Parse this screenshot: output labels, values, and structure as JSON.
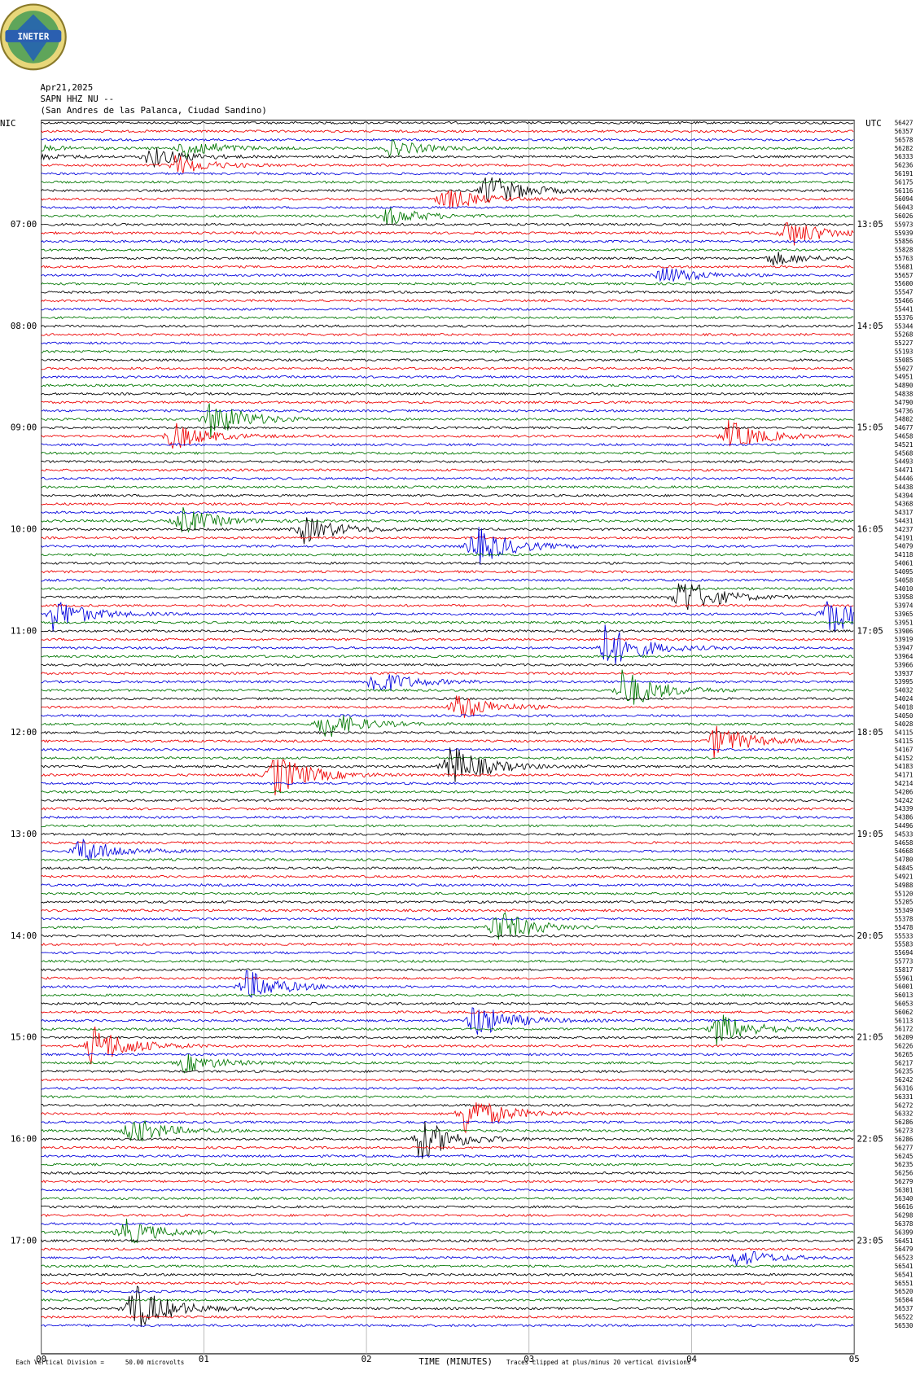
{
  "header": {
    "logo": "INETER",
    "date": "Apr21,2025",
    "station": "SAPN HHZ NU --",
    "location": "(San Andres de las Palanca, Ciudad Sandino)",
    "left_zone": "NIC",
    "right_zone": "UTC"
  },
  "hour_labels": [
    {
      "nic": "07:00",
      "utc": "13:05"
    },
    {
      "nic": "08:00",
      "utc": "14:05"
    },
    {
      "nic": "09:00",
      "utc": "15:05"
    },
    {
      "nic": "10:00",
      "utc": "16:05"
    },
    {
      "nic": "11:00",
      "utc": "17:05"
    },
    {
      "nic": "12:00",
      "utc": "18:05"
    },
    {
      "nic": "13:00",
      "utc": "19:05"
    },
    {
      "nic": "14:00",
      "utc": "20:05"
    },
    {
      "nic": "15:00",
      "utc": "21:05"
    },
    {
      "nic": "16:00",
      "utc": "22:05"
    },
    {
      "nic": "17:00",
      "utc": "23:05"
    }
  ],
  "trace_counts": [
    56427,
    56357,
    56578,
    56282,
    56333,
    56236,
    56191,
    56175,
    56116,
    56094,
    56043,
    56026,
    55973,
    55939,
    55856,
    55828,
    55763,
    55681,
    55657,
    55600,
    55547,
    55466,
    55441,
    55376,
    55344,
    55268,
    55227,
    55193,
    55085,
    55027,
    54951,
    54890,
    54838,
    54790,
    54736,
    54802,
    54677,
    54658,
    54521,
    54568,
    54493,
    54471,
    54446,
    54438,
    54394,
    54368,
    54317,
    54431,
    54237,
    54191,
    54079,
    54118,
    54061,
    54095,
    54058,
    54010,
    53958,
    53974,
    53965,
    53951,
    53906,
    53919,
    53947,
    53964,
    53966,
    53937,
    53995,
    54032,
    54024,
    54018,
    54050,
    54028,
    54115,
    54115,
    54167,
    54152,
    54183,
    54171,
    54214,
    54206,
    54242,
    54339,
    54386,
    54496,
    54533,
    54658,
    54668,
    54780,
    54845,
    54921,
    54988,
    55120,
    55205,
    55349,
    55378,
    55478,
    55533,
    55583,
    55694,
    55773,
    55817,
    55961,
    56001,
    56013,
    56053,
    56062,
    56113,
    56172,
    56209,
    56226,
    56265,
    56217,
    56235,
    56242,
    56316,
    56331,
    56272,
    56332,
    56286,
    56273,
    56286,
    56277,
    56245,
    56235,
    56256,
    56279,
    56301,
    56340,
    56616,
    56298,
    56378,
    56399,
    56451,
    56479,
    56523,
    56541,
    56541,
    56551,
    56520,
    56504,
    56537,
    56522,
    56530
  ],
  "x_axis": {
    "ticks": [
      "00",
      "01",
      "02",
      "03",
      "04",
      "05"
    ],
    "label": "TIME (MINUTES)"
  },
  "footer": {
    "scale_prefix": "Each Vertical Division =",
    "scale_value": "50.00 microvolts",
    "clip_note": "Traces clipped at plus/minus 20 vertical divisions"
  }
}
